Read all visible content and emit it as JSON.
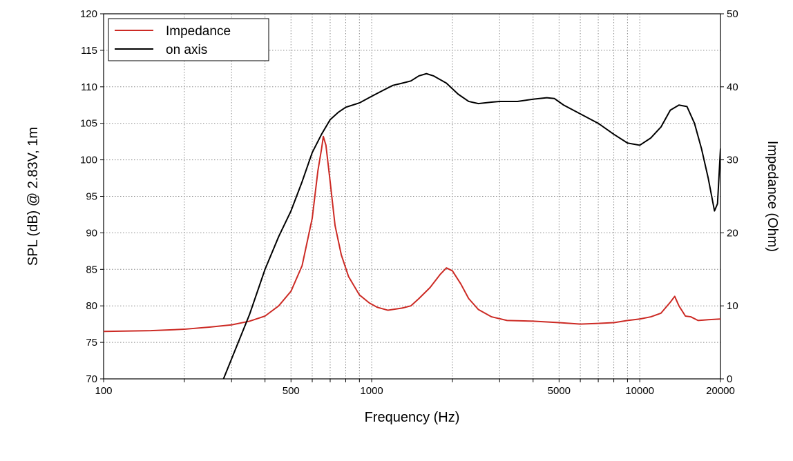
{
  "chart_data": {
    "type": "line",
    "xscale": "log",
    "xlabel": "Frequency (Hz)",
    "ylabel": "SPL (dB) @ 2.83V, 1m",
    "y2label": "Impedance (Ohm)",
    "xlim": [
      100,
      20000
    ],
    "ylim": [
      70,
      120
    ],
    "y2lim": [
      0,
      50
    ],
    "grid": true,
    "legend_position": "top-left",
    "x_tick_labels": [
      {
        "value": 100,
        "label": "100"
      },
      {
        "value": 500,
        "label": "500"
      },
      {
        "value": 1000,
        "label": "1000"
      },
      {
        "value": 5000,
        "label": "5000"
      },
      {
        "value": 10000,
        "label": "10000"
      },
      {
        "value": 20000,
        "label": "20000"
      }
    ],
    "y_ticks": [
      70,
      75,
      80,
      85,
      90,
      95,
      100,
      105,
      110,
      115,
      120
    ],
    "y2_ticks": [
      0,
      10,
      20,
      30,
      40,
      50
    ],
    "series": [
      {
        "name": "Impedance",
        "axis": "right",
        "color": "#cc2a24",
        "points": [
          [
            100,
            6.5
          ],
          [
            150,
            6.6
          ],
          [
            200,
            6.8
          ],
          [
            250,
            7.1
          ],
          [
            300,
            7.4
          ],
          [
            350,
            7.9
          ],
          [
            400,
            8.6
          ],
          [
            450,
            10.0
          ],
          [
            500,
            12.0
          ],
          [
            550,
            15.5
          ],
          [
            600,
            22.0
          ],
          [
            630,
            28.5
          ],
          [
            650,
            31.5
          ],
          [
            660,
            33.2
          ],
          [
            675,
            32.0
          ],
          [
            700,
            27.0
          ],
          [
            730,
            21.0
          ],
          [
            770,
            17.0
          ],
          [
            820,
            14.0
          ],
          [
            900,
            11.5
          ],
          [
            980,
            10.4
          ],
          [
            1050,
            9.8
          ],
          [
            1150,
            9.4
          ],
          [
            1300,
            9.7
          ],
          [
            1400,
            10.0
          ],
          [
            1500,
            11.0
          ],
          [
            1650,
            12.5
          ],
          [
            1800,
            14.3
          ],
          [
            1900,
            15.2
          ],
          [
            2000,
            14.8
          ],
          [
            2150,
            13.0
          ],
          [
            2300,
            11.0
          ],
          [
            2500,
            9.5
          ],
          [
            2800,
            8.5
          ],
          [
            3200,
            8.0
          ],
          [
            4000,
            7.9
          ],
          [
            5000,
            7.7
          ],
          [
            6000,
            7.5
          ],
          [
            7000,
            7.6
          ],
          [
            8000,
            7.7
          ],
          [
            9000,
            8.0
          ],
          [
            10000,
            8.2
          ],
          [
            11000,
            8.5
          ],
          [
            12000,
            9.0
          ],
          [
            13000,
            10.5
          ],
          [
            13500,
            11.3
          ],
          [
            14000,
            10.0
          ],
          [
            14800,
            8.6
          ],
          [
            15500,
            8.5
          ],
          [
            16500,
            8.0
          ],
          [
            18000,
            8.1
          ],
          [
            20000,
            8.2
          ]
        ]
      },
      {
        "name": "on axis",
        "axis": "left",
        "color": "#000000",
        "points": [
          [
            280,
            70.0
          ],
          [
            350,
            78.8
          ],
          [
            400,
            85.0
          ],
          [
            450,
            89.5
          ],
          [
            500,
            93.0
          ],
          [
            550,
            97.0
          ],
          [
            600,
            101.0
          ],
          [
            650,
            103.5
          ],
          [
            700,
            105.5
          ],
          [
            750,
            106.5
          ],
          [
            800,
            107.2
          ],
          [
            900,
            107.8
          ],
          [
            1000,
            108.7
          ],
          [
            1100,
            109.5
          ],
          [
            1200,
            110.2
          ],
          [
            1300,
            110.5
          ],
          [
            1400,
            110.8
          ],
          [
            1500,
            111.5
          ],
          [
            1600,
            111.8
          ],
          [
            1700,
            111.5
          ],
          [
            1900,
            110.5
          ],
          [
            2100,
            109.0
          ],
          [
            2300,
            108.0
          ],
          [
            2500,
            107.7
          ],
          [
            2800,
            107.9
          ],
          [
            3000,
            108.0
          ],
          [
            3500,
            108.0
          ],
          [
            4000,
            108.3
          ],
          [
            4500,
            108.5
          ],
          [
            4800,
            108.4
          ],
          [
            5200,
            107.5
          ],
          [
            6000,
            106.3
          ],
          [
            7000,
            105.0
          ],
          [
            8000,
            103.5
          ],
          [
            9000,
            102.3
          ],
          [
            10000,
            102.0
          ],
          [
            11000,
            103.0
          ],
          [
            12000,
            104.5
          ],
          [
            13000,
            106.8
          ],
          [
            14000,
            107.5
          ],
          [
            15000,
            107.3
          ],
          [
            16000,
            105.0
          ],
          [
            17000,
            101.5
          ],
          [
            18000,
            97.5
          ],
          [
            19000,
            93.0
          ],
          [
            19500,
            94.0
          ],
          [
            20000,
            101.5
          ]
        ]
      }
    ]
  }
}
